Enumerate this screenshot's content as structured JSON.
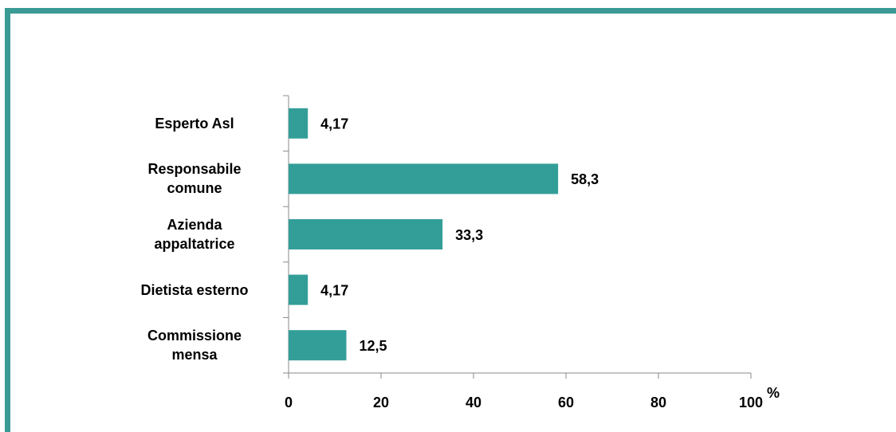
{
  "chart_data": {
    "type": "bar",
    "orientation": "horizontal",
    "categories": [
      "Esperto Asl",
      "Responsabile\ncomune",
      "Azienda\nappaltatrice",
      "Dietista esterno",
      "Commissione\nmensa"
    ],
    "values": [
      4.17,
      58.3,
      33.3,
      4.17,
      12.5
    ],
    "value_labels": [
      "4,17",
      "58,3",
      "33,3",
      "4,17",
      "12,5"
    ],
    "color": "#339e98",
    "xlabel": "%",
    "xlim": [
      0,
      100
    ],
    "xticks": [
      0,
      20,
      40,
      60,
      80,
      100
    ],
    "grid": false
  }
}
